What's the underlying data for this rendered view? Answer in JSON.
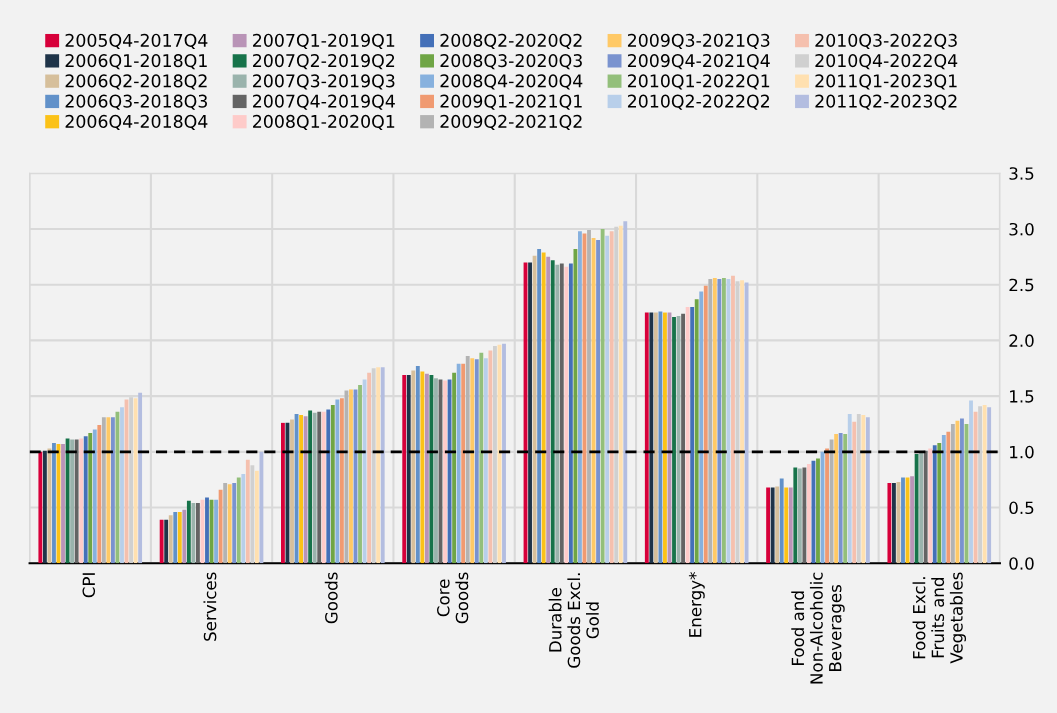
{
  "chart_data": {
    "type": "bar",
    "categories": [
      "CPI",
      "Services",
      "Goods",
      "Core\nGoods",
      "Durable\nGoods Excl.\nGold",
      "Energy*",
      "Food and\nNon-Alcoholic\nBeverages",
      "Food Excl.\nFruits and\nVegetables"
    ],
    "series": [
      {
        "name": "2005Q4-2017Q4",
        "color": "#d7003a",
        "values": [
          1.0,
          0.39,
          1.26,
          1.69,
          2.7,
          2.25,
          0.68,
          0.72
        ]
      },
      {
        "name": "2006Q1-2018Q1",
        "color": "#1f3449",
        "values": [
          1.01,
          0.39,
          1.26,
          1.69,
          2.7,
          2.25,
          0.68,
          0.72
        ]
      },
      {
        "name": "2006Q2-2018Q2",
        "color": "#d6bf9b",
        "values": [
          1.03,
          0.43,
          1.29,
          1.73,
          2.76,
          2.25,
          0.69,
          0.73
        ]
      },
      {
        "name": "2006Q3-2018Q3",
        "color": "#6191c9",
        "values": [
          1.08,
          0.46,
          1.34,
          1.77,
          2.82,
          2.26,
          0.76,
          0.77
        ]
      },
      {
        "name": "2006Q4-2018Q4",
        "color": "#fbc218",
        "values": [
          1.07,
          0.46,
          1.33,
          1.72,
          2.79,
          2.25,
          0.68,
          0.77
        ]
      },
      {
        "name": "2007Q1-2019Q1",
        "color": "#b994b7",
        "values": [
          1.07,
          0.48,
          1.32,
          1.7,
          2.75,
          2.25,
          0.68,
          0.78
        ]
      },
      {
        "name": "2007Q2-2019Q2",
        "color": "#17734a",
        "values": [
          1.12,
          0.56,
          1.37,
          1.69,
          2.72,
          2.21,
          0.86,
          0.98
        ]
      },
      {
        "name": "2007Q3-2019Q3",
        "color": "#9ab3ac",
        "values": [
          1.11,
          0.54,
          1.35,
          1.66,
          2.68,
          2.22,
          0.85,
          1.0
        ]
      },
      {
        "name": "2007Q4-2019Q4",
        "color": "#646464",
        "values": [
          1.11,
          0.54,
          1.36,
          1.65,
          2.69,
          2.24,
          0.86,
          1.01
        ]
      },
      {
        "name": "2008Q1-2020Q1",
        "color": "#fecbc9",
        "values": [
          1.12,
          0.57,
          1.36,
          1.64,
          2.66,
          2.3,
          0.89,
          1.03
        ]
      },
      {
        "name": "2008Q2-2020Q2",
        "color": "#4470b8",
        "values": [
          1.14,
          0.59,
          1.38,
          1.65,
          2.69,
          2.3,
          0.92,
          1.06
        ]
      },
      {
        "name": "2008Q3-2020Q3",
        "color": "#6fa545",
        "values": [
          1.17,
          0.57,
          1.42,
          1.71,
          2.82,
          2.37,
          0.94,
          1.08
        ]
      },
      {
        "name": "2008Q4-2020Q4",
        "color": "#87b1de",
        "values": [
          1.2,
          0.57,
          1.47,
          1.79,
          2.98,
          2.44,
          1.0,
          1.15
        ]
      },
      {
        "name": "2009Q1-2021Q1",
        "color": "#f09a71",
        "values": [
          1.24,
          0.66,
          1.48,
          1.79,
          2.96,
          2.49,
          1.03,
          1.18
        ]
      },
      {
        "name": "2009Q2-2021Q2",
        "color": "#b3b3b3",
        "values": [
          1.31,
          0.72,
          1.55,
          1.86,
          2.99,
          2.55,
          1.11,
          1.25
        ]
      },
      {
        "name": "2009Q3-2021Q3",
        "color": "#ffc966",
        "values": [
          1.31,
          0.71,
          1.56,
          1.84,
          2.92,
          2.56,
          1.16,
          1.28
        ]
      },
      {
        "name": "2009Q4-2021Q4",
        "color": "#7a93cf",
        "values": [
          1.31,
          0.72,
          1.56,
          1.83,
          2.9,
          2.55,
          1.17,
          1.3
        ]
      },
      {
        "name": "2010Q1-2022Q1",
        "color": "#93bf7b",
        "values": [
          1.36,
          0.77,
          1.6,
          1.89,
          3.0,
          2.56,
          1.16,
          1.25
        ]
      },
      {
        "name": "2010Q2-2022Q2",
        "color": "#b8cfea",
        "values": [
          1.4,
          0.8,
          1.65,
          1.84,
          2.94,
          2.55,
          1.34,
          1.46
        ]
      },
      {
        "name": "2010Q3-2022Q3",
        "color": "#f5c0ae",
        "values": [
          1.47,
          0.93,
          1.71,
          1.91,
          2.98,
          2.58,
          1.27,
          1.36
        ]
      },
      {
        "name": "2010Q4-2022Q4",
        "color": "#d0d0d0",
        "values": [
          1.49,
          0.88,
          1.75,
          1.95,
          3.02,
          2.53,
          1.34,
          1.41
        ]
      },
      {
        "name": "2011Q1-2023Q1",
        "color": "#ffe0b0",
        "values": [
          1.48,
          0.83,
          1.76,
          1.96,
          3.03,
          2.54,
          1.33,
          1.42
        ]
      },
      {
        "name": "2011Q2-2023Q2",
        "color": "#b3bde0",
        "values": [
          1.53,
          1.0,
          1.76,
          1.97,
          3.07,
          2.52,
          1.31,
          1.4
        ]
      }
    ],
    "ylim": [
      0,
      3.5
    ],
    "yticks": [
      {
        "value": 0,
        "label": "0.0"
      },
      {
        "value": 0.5,
        "label": "0.5"
      },
      {
        "value": 1,
        "label": "1.0"
      },
      {
        "value": 1.5,
        "label": "1.5"
      },
      {
        "value": 2,
        "label": "2.0"
      },
      {
        "value": 2.5,
        "label": "2.5"
      },
      {
        "value": 3,
        "label": "3.0"
      },
      {
        "value": 3.5,
        "label": "3.5"
      }
    ],
    "ref_lines": [
      {
        "axis": "y",
        "value": 1,
        "color": "#000000",
        "line_style": "dashed"
      }
    ],
    "grid": true,
    "legend": "top"
  }
}
